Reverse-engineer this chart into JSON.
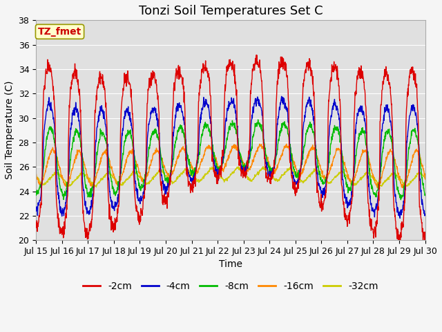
{
  "title": "Tonzi Soil Temperatures Set C",
  "xlabel": "Time",
  "ylabel": "Soil Temperature (C)",
  "ylim": [
    20,
    38
  ],
  "xlim": [
    0,
    15
  ],
  "x_tick_labels": [
    "Jul 15",
    "Jul 16",
    "Jul 17",
    "Jul 18",
    "Jul 19",
    "Jul 20",
    "Jul 21",
    "Jul 22",
    "Jul 23",
    "Jul 24",
    "Jul 25",
    "Jul 26",
    "Jul 27",
    "Jul 28",
    "Jul 29",
    "Jul 30"
  ],
  "series_labels": [
    "-2cm",
    "-4cm",
    "-8cm",
    "-16cm",
    "-32cm"
  ],
  "series_colors": [
    "#dd0000",
    "#0000cc",
    "#00bb00",
    "#ff8800",
    "#cccc00"
  ],
  "annotation_text": "TZ_fmet",
  "annotation_bg": "#ffffcc",
  "annotation_border": "#999900",
  "plot_bg": "#e0e0e0",
  "fig_bg": "#f5f5f5",
  "grid_color": "#ffffff",
  "title_fontsize": 13,
  "axis_label_fontsize": 10,
  "tick_fontsize": 9,
  "legend_fontsize": 10
}
